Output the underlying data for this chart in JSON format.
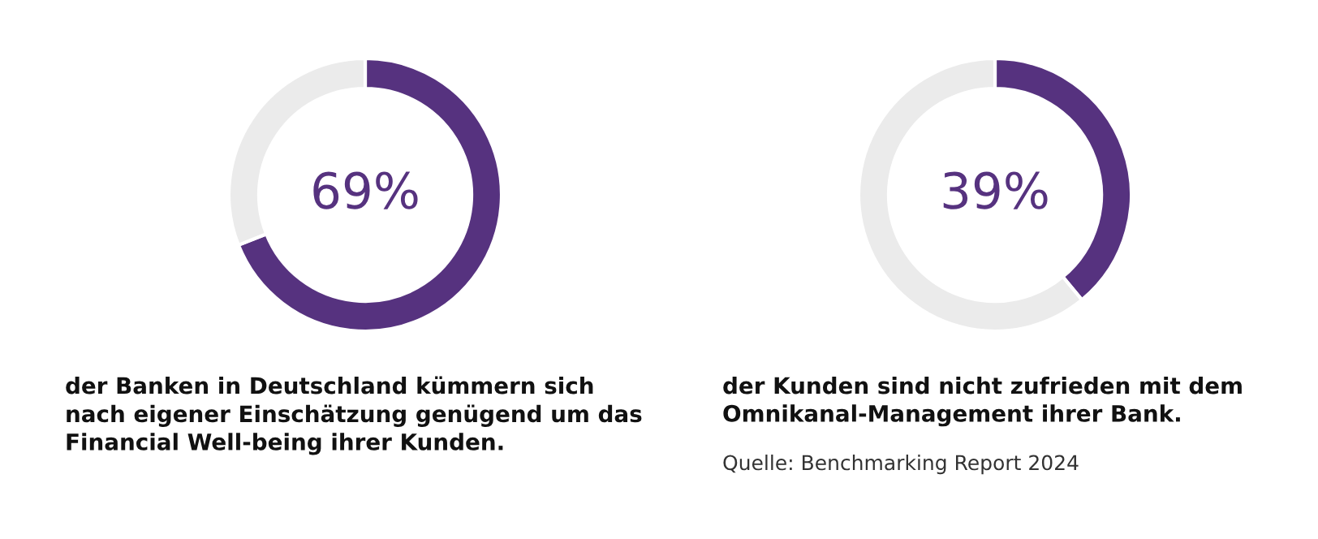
{
  "chart_data": [
    {
      "type": "donut",
      "categories": [
        null,
        null
      ],
      "values": [
        69,
        31
      ],
      "colors": [
        "#56327f",
        "#ebebeb"
      ],
      "value_labels": [
        "69%",
        null
      ],
      "annotations": [
        "der Banken in Deutschland kümmern sich\nnach eigener Einschätzung genügend um das\nFinancial Well-being ihrer Kunden."
      ]
    },
    {
      "type": "donut",
      "categories": [
        null,
        null
      ],
      "values": [
        39,
        61
      ],
      "colors": [
        "#56327f",
        "#ebebeb"
      ],
      "value_labels": [
        "39%",
        null
      ],
      "annotations": [
        "der Kunden sind nicht zufrieden mit dem\nOmnikanal-Management ihrer Bank.",
        "Quelle: Benchmarking Report 2024"
      ]
    }
  ]
}
